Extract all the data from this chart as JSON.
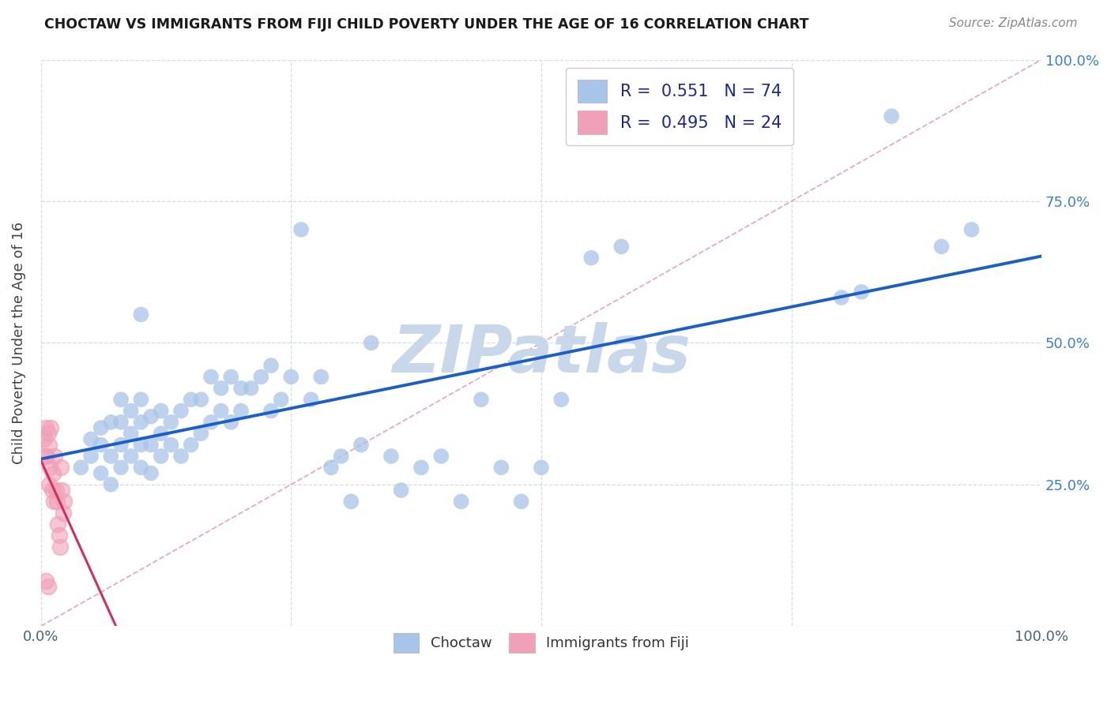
{
  "title": "CHOCTAW VS IMMIGRANTS FROM FIJI CHILD POVERTY UNDER THE AGE OF 16 CORRELATION CHART",
  "source": "Source: ZipAtlas.com",
  "ylabel": "Child Poverty Under the Age of 16",
  "xlim": [
    0,
    1
  ],
  "ylim": [
    0,
    1
  ],
  "choctaw_R": 0.551,
  "choctaw_N": 74,
  "fiji_R": 0.495,
  "fiji_N": 24,
  "choctaw_color": "#a8c4e8",
  "fiji_color": "#f0a0b8",
  "trend_color_choctaw": "#1a5fc8",
  "trend_color_fiji": "#d03060",
  "diagonal_color": "#e8a0b0",
  "watermark": "ZIPatlas",
  "watermark_color": "#c8d8ea",
  "choctaw_x": [
    0.04,
    0.05,
    0.05,
    0.06,
    0.06,
    0.06,
    0.07,
    0.07,
    0.07,
    0.08,
    0.08,
    0.08,
    0.08,
    0.09,
    0.09,
    0.09,
    0.1,
    0.1,
    0.1,
    0.1,
    0.1,
    0.11,
    0.11,
    0.11,
    0.12,
    0.12,
    0.12,
    0.13,
    0.13,
    0.14,
    0.14,
    0.15,
    0.15,
    0.16,
    0.16,
    0.17,
    0.17,
    0.18,
    0.18,
    0.19,
    0.19,
    0.2,
    0.2,
    0.21,
    0.22,
    0.23,
    0.23,
    0.24,
    0.25,
    0.26,
    0.27,
    0.28,
    0.29,
    0.3,
    0.31,
    0.32,
    0.33,
    0.35,
    0.36,
    0.38,
    0.4,
    0.42,
    0.44,
    0.46,
    0.48,
    0.5,
    0.52,
    0.55,
    0.58,
    0.8,
    0.82,
    0.85,
    0.9,
    0.93
  ],
  "choctaw_y": [
    0.28,
    0.3,
    0.33,
    0.27,
    0.32,
    0.35,
    0.25,
    0.3,
    0.36,
    0.28,
    0.32,
    0.36,
    0.4,
    0.3,
    0.34,
    0.38,
    0.28,
    0.32,
    0.36,
    0.4,
    0.55,
    0.27,
    0.32,
    0.37,
    0.3,
    0.34,
    0.38,
    0.32,
    0.36,
    0.3,
    0.38,
    0.32,
    0.4,
    0.34,
    0.4,
    0.36,
    0.44,
    0.38,
    0.42,
    0.36,
    0.44,
    0.38,
    0.42,
    0.42,
    0.44,
    0.38,
    0.46,
    0.4,
    0.44,
    0.7,
    0.4,
    0.44,
    0.28,
    0.3,
    0.22,
    0.32,
    0.5,
    0.3,
    0.24,
    0.28,
    0.3,
    0.22,
    0.4,
    0.28,
    0.22,
    0.28,
    0.4,
    0.65,
    0.67,
    0.58,
    0.59,
    0.9,
    0.67,
    0.7
  ],
  "fiji_x": [
    0.003,
    0.004,
    0.005,
    0.006,
    0.007,
    0.008,
    0.008,
    0.009,
    0.01,
    0.011,
    0.012,
    0.013,
    0.014,
    0.015,
    0.016,
    0.017,
    0.018,
    0.019,
    0.02,
    0.021,
    0.022,
    0.023,
    0.005,
    0.007
  ],
  "fiji_y": [
    0.33,
    0.3,
    0.35,
    0.3,
    0.34,
    0.32,
    0.25,
    0.28,
    0.35,
    0.24,
    0.27,
    0.22,
    0.3,
    0.24,
    0.22,
    0.18,
    0.16,
    0.14,
    0.28,
    0.24,
    0.2,
    0.22,
    0.08,
    0.07
  ],
  "background_color": "#ffffff",
  "grid_color": "#d0d8e8"
}
